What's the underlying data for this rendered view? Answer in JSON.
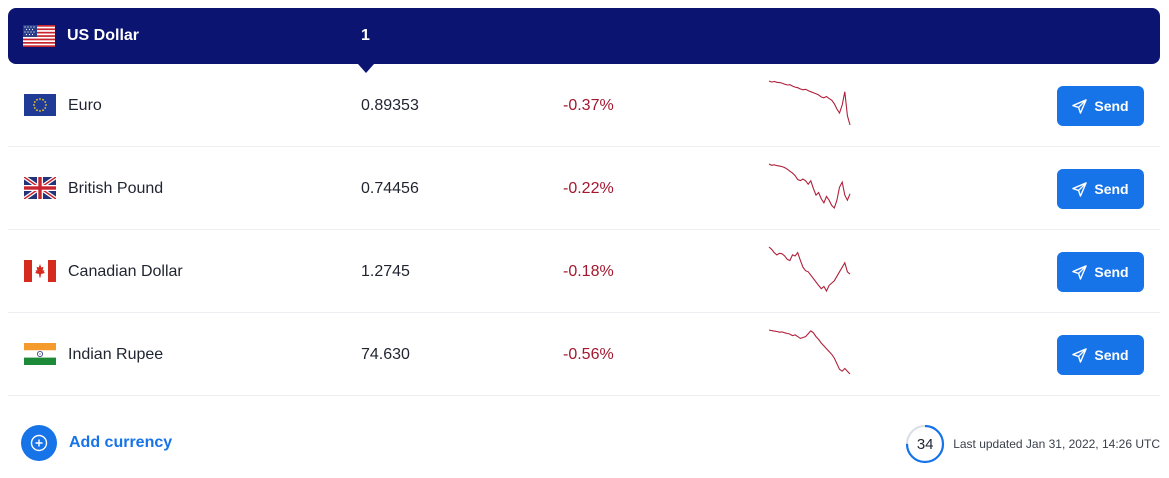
{
  "base": {
    "name": "US Dollar",
    "amount": "1",
    "flag_icon": "us-flag-icon"
  },
  "currencies": [
    {
      "name": "Euro",
      "rate": "0.89353",
      "change": "-0.37%",
      "flag_icon": "eu-flag-icon",
      "trend": [
        0,
        0.4,
        0.2,
        0.5,
        0.6,
        0.8,
        1.2,
        1.5,
        1.4,
        1.9,
        2.3,
        2.5,
        3.0,
        3.3,
        3.1,
        3.6,
        4.0,
        4.4,
        4.8,
        5.2,
        6.0,
        6.3,
        5.8,
        6.6,
        7.2,
        8.5,
        10.5,
        12.0,
        9.0,
        4.0,
        13.0,
        16.5
      ]
    },
    {
      "name": "British Pound",
      "rate": "0.74456",
      "change": "-0.22%",
      "flag_icon": "uk-flag-icon",
      "trend": [
        0,
        0.5,
        0.3,
        0.6,
        0.8,
        1.0,
        1.4,
        2.0,
        2.8,
        3.5,
        4.5,
        6.0,
        6.4,
        5.8,
        6.5,
        7.8,
        6.5,
        9.5,
        12.0,
        11.0,
        13.5,
        15.0,
        12.5,
        14.0,
        16.0,
        17.0,
        14.0,
        9.0,
        7.0,
        12.0,
        14.0,
        11.5
      ]
    },
    {
      "name": "Canadian Dollar",
      "rate": "1.2745",
      "change": "-0.18%",
      "flag_icon": "ca-flag-icon",
      "trend": [
        0,
        1.0,
        2.5,
        3.5,
        2.8,
        3.0,
        4.0,
        5.5,
        6.0,
        3.5,
        4.0,
        2.5,
        6.0,
        9.0,
        10.5,
        11.0,
        12.5,
        14.0,
        15.5,
        17.0,
        18.5,
        17.5,
        19.5,
        17.0,
        16.0,
        15.0,
        13.0,
        11.0,
        9.0,
        7.0,
        11.0,
        12.0
      ]
    },
    {
      "name": "Indian Rupee",
      "rate": "74.630",
      "change": "-0.56%",
      "flag_icon": "in-flag-icon",
      "trend": [
        0,
        0.3,
        0.6,
        0.8,
        1.2,
        1.0,
        1.5,
        1.8,
        2.2,
        3.0,
        2.6,
        3.5,
        4.5,
        4.0,
        3.5,
        2.0,
        0.5,
        1.5,
        3.5,
        5.0,
        7.0,
        8.5,
        10.0,
        11.5,
        13.0,
        15.0,
        18.0,
        21.0,
        22.0,
        20.5,
        22.0,
        23.5
      ]
    }
  ],
  "send_label": "Send",
  "colors": {
    "navy": "#0b1470",
    "accent": "#1773e8",
    "negative": "#a3172f"
  },
  "add_currency_label": "Add currency",
  "refresh_countdown": "34",
  "refresh_fraction": 0.75,
  "last_updated": "Last updated Jan 31, 2022, 14:26 UTC"
}
